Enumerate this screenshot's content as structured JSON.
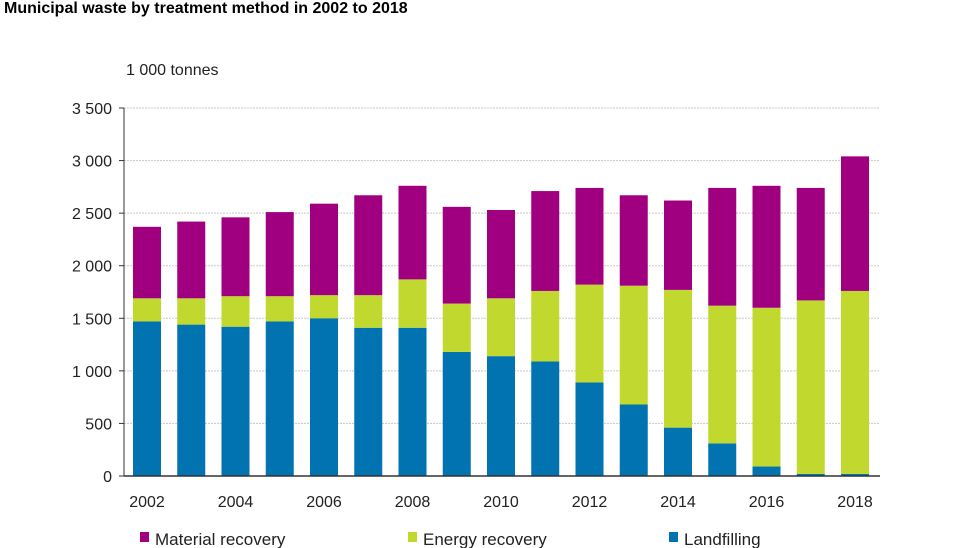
{
  "chart_data": {
    "type": "bar",
    "stacked": true,
    "title": "Municipal waste by treatment method in 2002 to 2018",
    "ylabel": "1 000 tonnes",
    "xlabel": "",
    "ylim": [
      0,
      3500
    ],
    "yticks": [
      0,
      500,
      1000,
      1500,
      2000,
      2500,
      3000,
      3500
    ],
    "ytick_labels": [
      "0",
      "500",
      "1 000",
      "1 500",
      "2 000",
      "2 500",
      "3 000",
      "3 500"
    ],
    "grid": true,
    "legend_position": "bottom",
    "categories": [
      "2002",
      "2003",
      "2004",
      "2005",
      "2006",
      "2007",
      "2008",
      "2009",
      "2010",
      "2011",
      "2012",
      "2013",
      "2014",
      "2015",
      "2016",
      "2017",
      "2018"
    ],
    "xtick_labels": [
      "2002",
      "2004",
      "2006",
      "2008",
      "2010",
      "2012",
      "2014",
      "2016",
      "2018"
    ],
    "series": [
      {
        "name": "Landfilling",
        "color": "#0073b0",
        "values": [
          1470,
          1440,
          1420,
          1470,
          1500,
          1410,
          1410,
          1180,
          1140,
          1090,
          890,
          680,
          460,
          310,
          90,
          20,
          20
        ]
      },
      {
        "name": "Energy recovery",
        "color": "#c1d82f",
        "values": [
          220,
          250,
          290,
          240,
          220,
          310,
          460,
          460,
          550,
          670,
          930,
          1130,
          1310,
          1310,
          1510,
          1650,
          1740
        ]
      },
      {
        "name": "Material recovery",
        "color": "#a0007f",
        "values": [
          680,
          730,
          750,
          800,
          870,
          950,
          890,
          920,
          840,
          950,
          920,
          860,
          850,
          1120,
          1160,
          1070,
          1280
        ]
      }
    ],
    "legend_order": [
      "Material recovery",
      "Energy recovery",
      "Landfilling"
    ]
  }
}
